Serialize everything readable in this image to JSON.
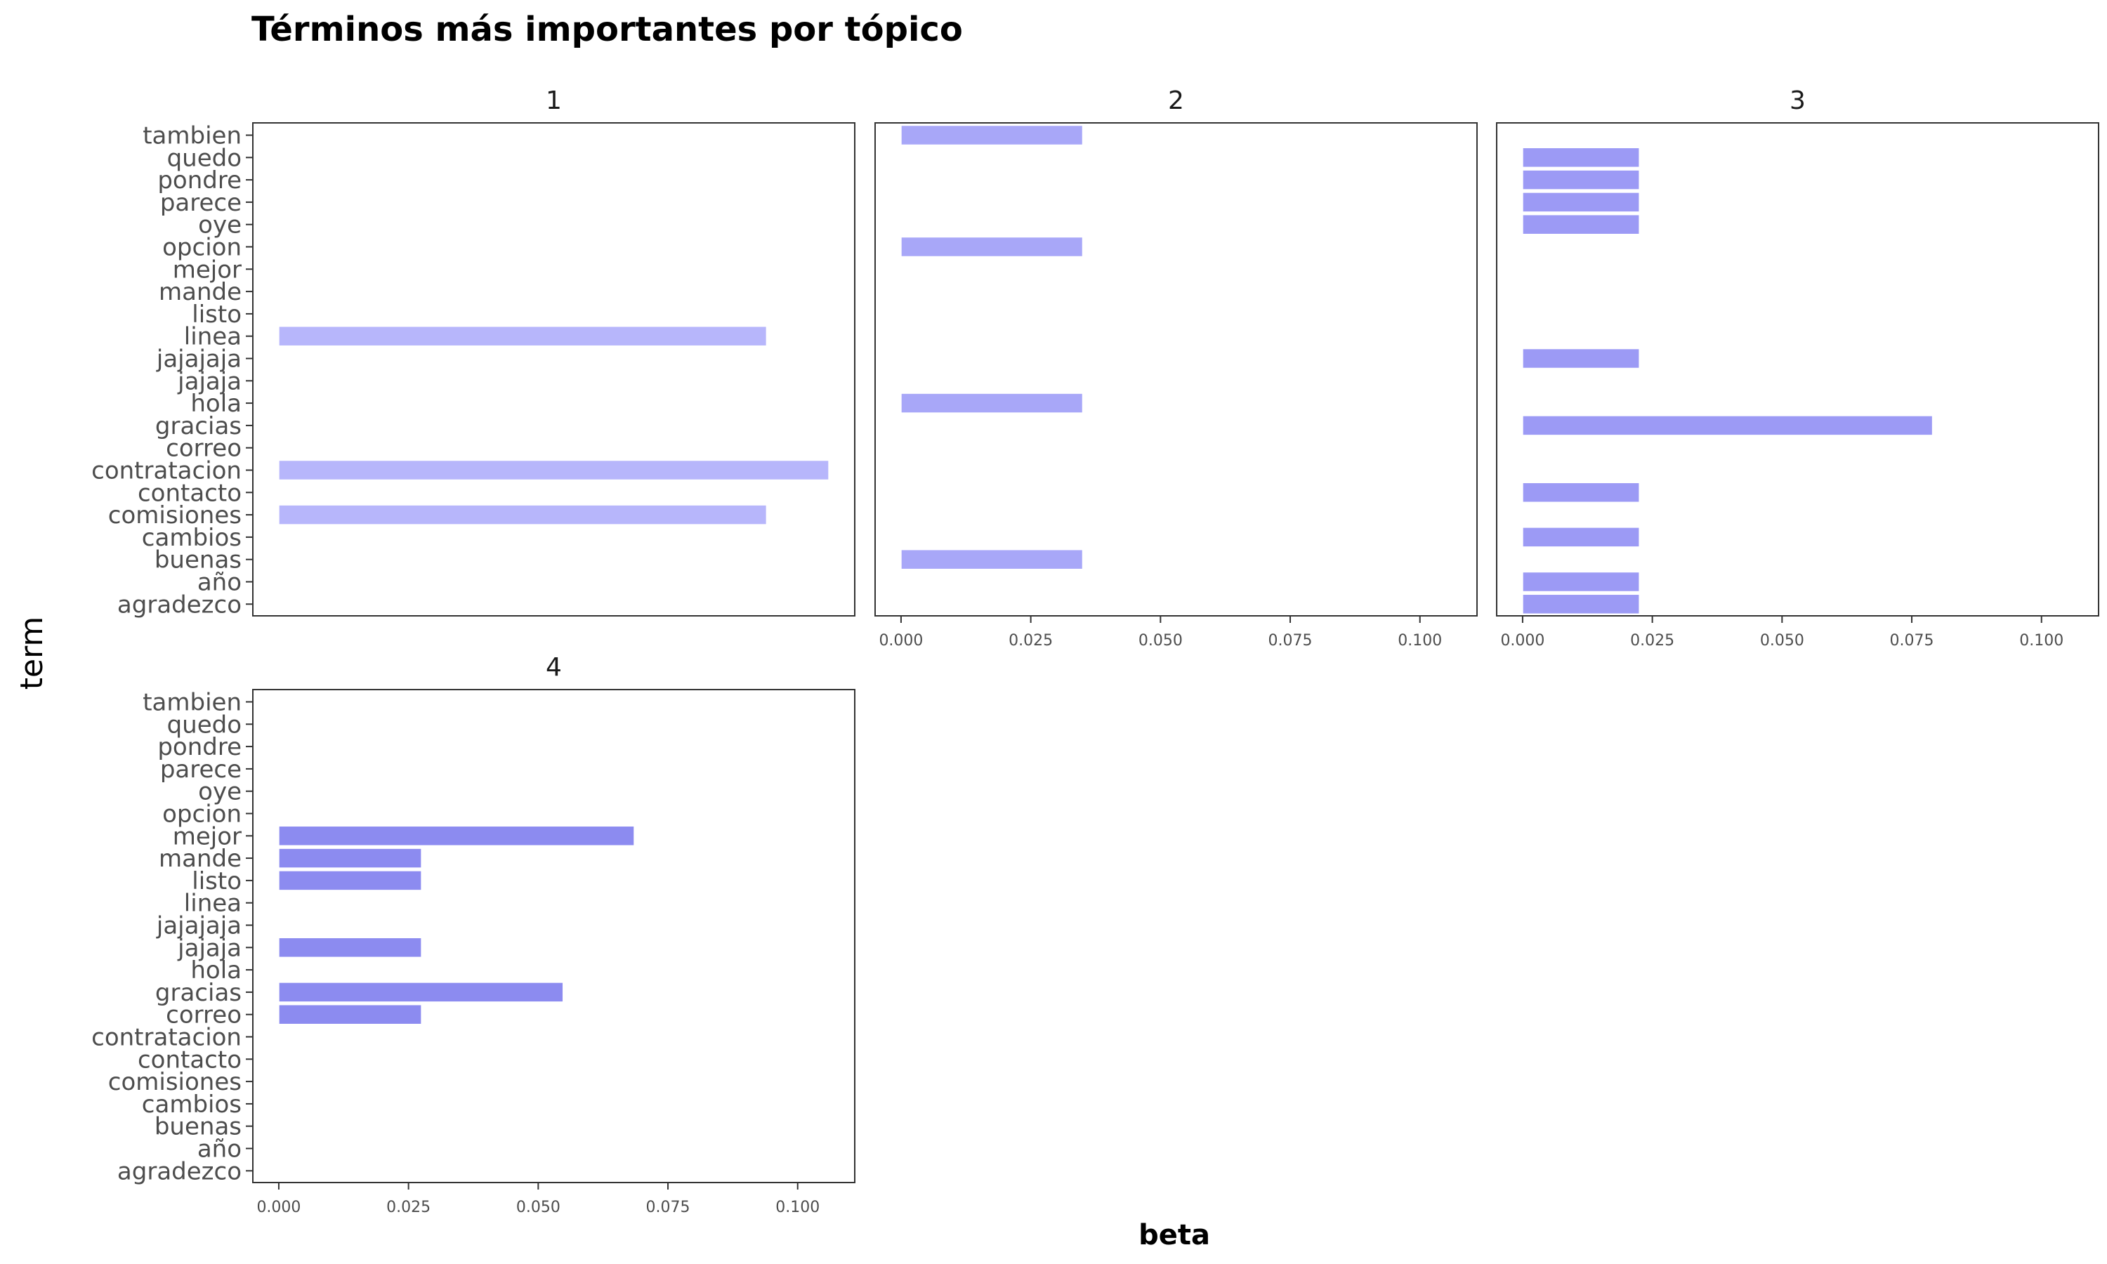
{
  "chart_data": {
    "type": "bar",
    "orientation": "horizontal",
    "title": "Términos más importantes por tópico",
    "xlabel": "beta",
    "ylabel": "term",
    "xlim": [
      -0.005,
      0.111
    ],
    "x_ticks": [
      "0.000",
      "0.025",
      "0.050",
      "0.075",
      "0.100"
    ],
    "x_tick_values": [
      0,
      0.025,
      0.05,
      0.075,
      0.1
    ],
    "grid": false,
    "legend": "none",
    "terms": [
      "tambien",
      "quedo",
      "pondre",
      "parece",
      "oye",
      "opcion",
      "mejor",
      "mande",
      "listo",
      "linea",
      "jajajaja",
      "jajaja",
      "hola",
      "gracias",
      "correo",
      "contratacion",
      "contacto",
      "comisiones",
      "cambios",
      "buenas",
      "año",
      "agradezco"
    ],
    "facets": [
      {
        "label": "1",
        "color": "#b7b6fb",
        "bars": [
          {
            "term": "linea",
            "beta": 0.094
          },
          {
            "term": "contratacion",
            "beta": 0.106
          },
          {
            "term": "comisiones",
            "beta": 0.094
          }
        ]
      },
      {
        "label": "2",
        "color": "#a8a7f8",
        "bars": [
          {
            "term": "tambien",
            "beta": 0.035
          },
          {
            "term": "opcion",
            "beta": 0.035
          },
          {
            "term": "hola",
            "beta": 0.035
          },
          {
            "term": "buenas",
            "beta": 0.035
          }
        ]
      },
      {
        "label": "3",
        "color": "#9c9af5",
        "bars": [
          {
            "term": "quedo",
            "beta": 0.0225
          },
          {
            "term": "pondre",
            "beta": 0.0225
          },
          {
            "term": "parece",
            "beta": 0.0225
          },
          {
            "term": "oye",
            "beta": 0.0225
          },
          {
            "term": "jajajaja",
            "beta": 0.0225
          },
          {
            "term": "gracias",
            "beta": 0.079
          },
          {
            "term": "contacto",
            "beta": 0.0225
          },
          {
            "term": "cambios",
            "beta": 0.0225
          },
          {
            "term": "año",
            "beta": 0.0225
          },
          {
            "term": "agradezco",
            "beta": 0.0225
          }
        ]
      },
      {
        "label": "4",
        "color": "#8c8bf0",
        "bars": [
          {
            "term": "mejor",
            "beta": 0.0685
          },
          {
            "term": "mande",
            "beta": 0.0275
          },
          {
            "term": "listo",
            "beta": 0.0275
          },
          {
            "term": "jajaja",
            "beta": 0.0275
          },
          {
            "term": "gracias",
            "beta": 0.0548
          },
          {
            "term": "correo",
            "beta": 0.0275
          }
        ]
      }
    ]
  }
}
